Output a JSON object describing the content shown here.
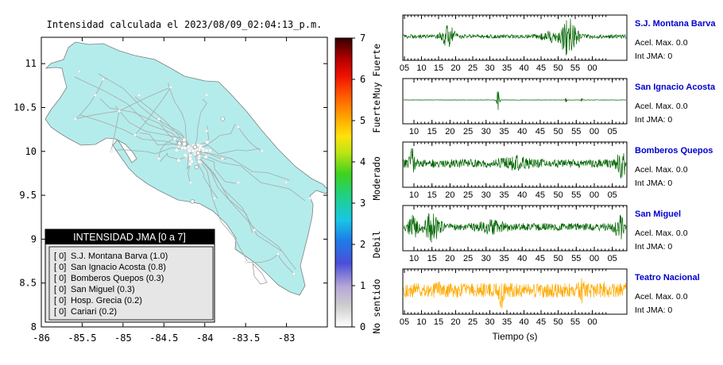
{
  "map": {
    "title": "Intensidad calculada el 2023/08/09_02:04:13_p.m.",
    "xlim": [
      -86,
      -82.5
    ],
    "ylim": [
      8,
      11.3
    ],
    "x_ticks": [
      "-86",
      "-85.5",
      "-85",
      "-84.5",
      "-84",
      "-83.5",
      "-83"
    ],
    "y_ticks": [
      "8",
      "8.5",
      "9",
      "9.5",
      "10",
      "10.5",
      "11"
    ],
    "land_color": "#b4ecec",
    "road_color": "#aaaaaa"
  },
  "legend_box": {
    "title": "INTENSIDAD JMA [0 a 7]",
    "items": [
      {
        "level": "[ 0]",
        "name": "S.J. Montana Barva (1.0)"
      },
      {
        "level": "[ 0]",
        "name": "San Ignacio Acosta (0.8)"
      },
      {
        "level": "[ 0]",
        "name": "Bomberos Quepos (0.3)"
      },
      {
        "level": "[ 0]",
        "name": "San Miguel (0.3)"
      },
      {
        "level": "[ 0]",
        "name": "Hosp. Grecia (0.2)"
      },
      {
        "level": "[ 0]",
        "name": "Cariari (0.2)"
      }
    ]
  },
  "colorbar": {
    "ticks": [
      "0",
      "1",
      "2",
      "3",
      "4",
      "5",
      "6",
      "7"
    ],
    "category_labels": [
      "No sentido",
      "Debil",
      "Moderado",
      "Fuerte",
      "Muy Fuerte"
    ]
  },
  "waveforms": {
    "xlabel": "Tiempo (s)",
    "stations": [
      {
        "name": "S.J. Montana Barva",
        "acel": "Acel. Max. 0.0",
        "int": "Int JMA: 0",
        "color": "#006400",
        "ticks": [
          "05",
          "10",
          "15",
          "20",
          "25",
          "30",
          "35",
          "40",
          "45",
          "50",
          "55",
          "00"
        ]
      },
      {
        "name": "San Ignacio Acosta",
        "acel": "Acel. Max. 0.0",
        "int": "Int JMA: 0",
        "color": "#006400",
        "ticks": [
          "10",
          "15",
          "20",
          "25",
          "30",
          "35",
          "40",
          "45",
          "50",
          "55",
          "00",
          "05"
        ]
      },
      {
        "name": "Bomberos Quepos",
        "acel": "Acel. Max. 0.0",
        "int": "Int JMA: 0",
        "color": "#006400",
        "ticks": [
          "10",
          "15",
          "20",
          "25",
          "30",
          "35",
          "40",
          "45",
          "50",
          "55",
          "00",
          "05"
        ]
      },
      {
        "name": "San Miguel",
        "acel": "Acel. Max. 0.0",
        "int": "Int JMA: 0",
        "color": "#006400",
        "ticks": [
          "10",
          "15",
          "20",
          "25",
          "30",
          "35",
          "40",
          "45",
          "50",
          "55",
          "00",
          "05"
        ]
      },
      {
        "name": "Teatro Nacional",
        "acel": "Acel. Max. 0.0",
        "int": "Int JMA: 0",
        "color": "#ffaa00",
        "ticks": [
          "05",
          "10",
          "15",
          "20",
          "25",
          "30",
          "35",
          "40",
          "45",
          "50",
          "55",
          "00"
        ]
      }
    ]
  },
  "chart_data": [
    {
      "type": "scatter",
      "title": "Intensidad calculada el 2023/08/09_02:04:13_p.m.",
      "xlim": [
        -86,
        -82.5
      ],
      "ylim": [
        8,
        11.3
      ],
      "series": [
        {
          "name": "",
          "points": [
            [
              -84.12,
              10.05
            ],
            [
              -84.1,
              9.82
            ],
            [
              -84.15,
              9.43
            ],
            [
              -84.08,
              9.98
            ],
            [
              -84.31,
              10.09
            ],
            [
              -83.78,
              10.37
            ]
          ]
        }
      ]
    },
    {
      "type": "line",
      "title": "",
      "xlabel": "Tiempo (s)",
      "series": [
        {
          "name": "S.J. Montana Barva",
          "peak_times_s": [
            15,
            47,
            50
          ]
        },
        {
          "name": "San Ignacio Acosta",
          "peak_times_s": [
            32
          ]
        },
        {
          "name": "Bomberos Quepos",
          "peak_times_s": [
            9,
            35
          ]
        },
        {
          "name": "San Miguel",
          "peak_times_s": [
            12,
            16
          ]
        },
        {
          "name": "Teatro Nacional",
          "peak_times_s": [
            30
          ]
        }
      ]
    }
  ]
}
